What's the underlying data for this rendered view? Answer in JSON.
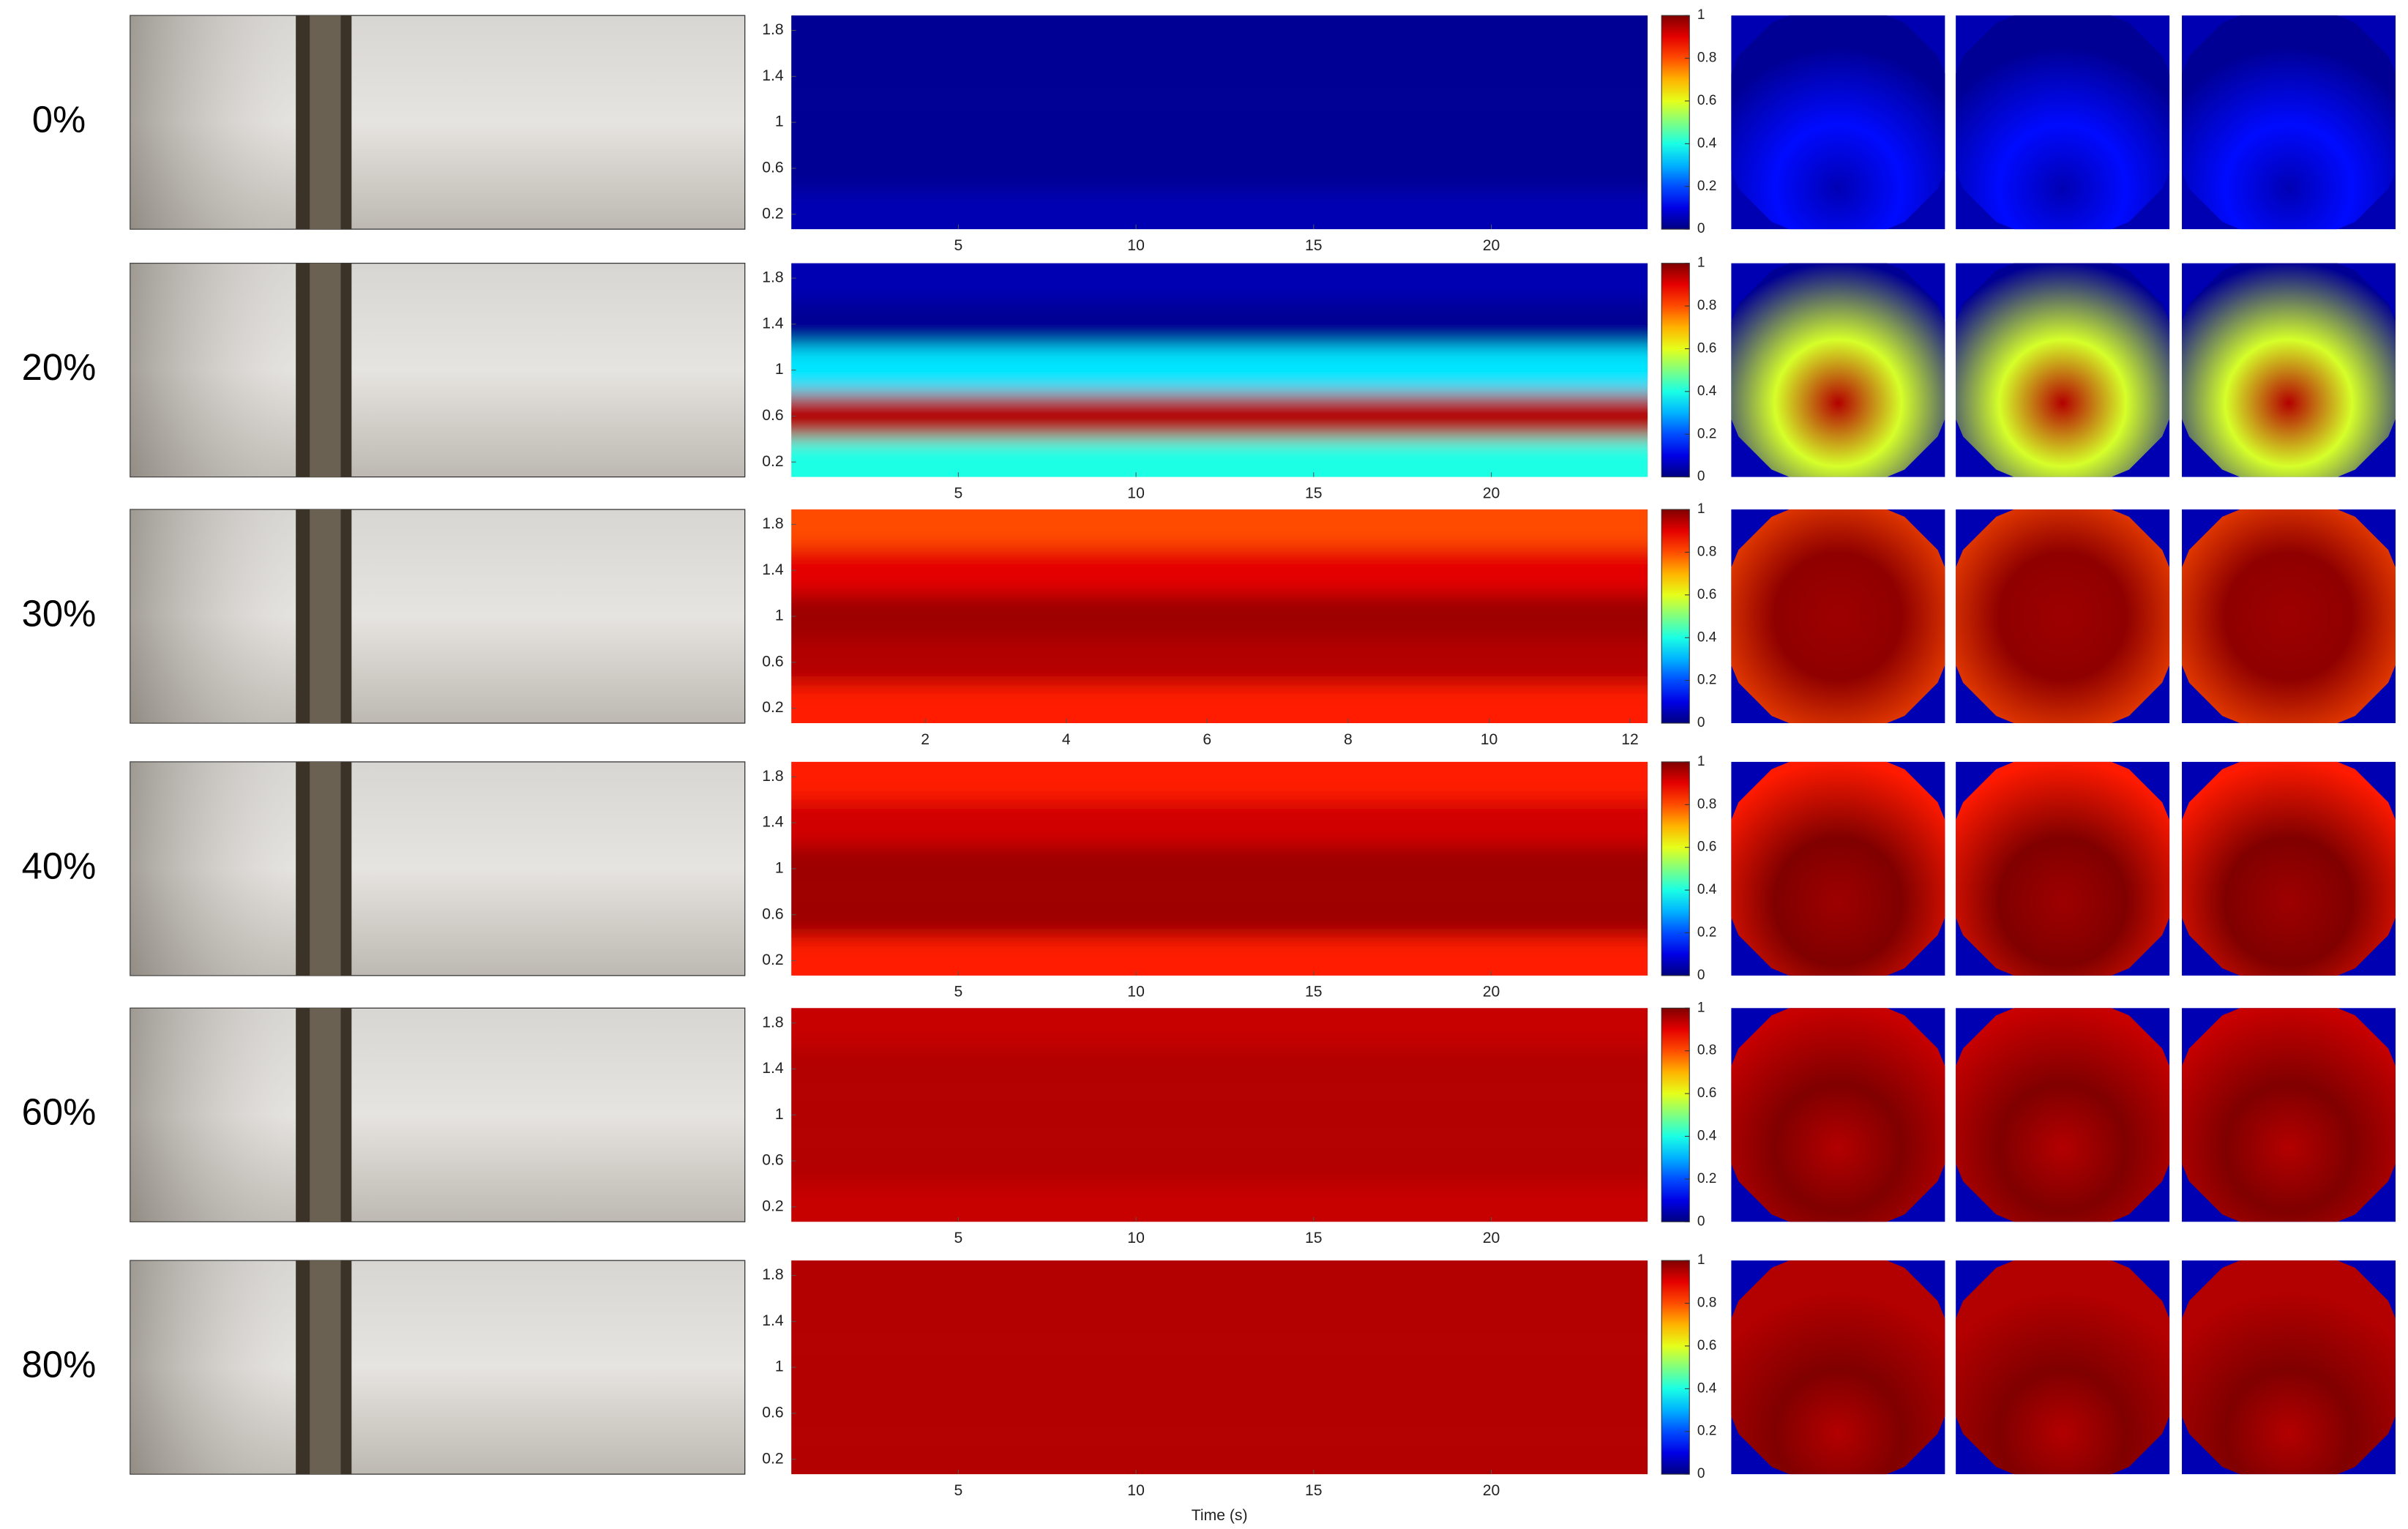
{
  "chart_data": [
    {
      "type": "heatmap",
      "label": "0%",
      "y": [
        0.2,
        0.6,
        1,
        1.4,
        1.8
      ],
      "values": [
        0.05,
        0.02,
        0.02,
        0.02,
        0.02
      ],
      "ylim": [
        0.07,
        1.93
      ],
      "yticks": [
        0.2,
        0.6,
        1,
        1.4,
        1.8
      ],
      "xlim": [
        0.3,
        24.4
      ],
      "xticks": [
        5,
        10,
        15,
        20
      ],
      "clim": [
        0,
        1
      ],
      "cticks": [
        0,
        0.2,
        0.4,
        0.6,
        0.8,
        1
      ]
    },
    {
      "type": "heatmap",
      "label": "20%",
      "y": [
        0.2,
        0.6,
        1,
        1.4,
        1.8
      ],
      "values": [
        0.4,
        0.95,
        0.35,
        0.02,
        0.05
      ],
      "ylim": [
        0.07,
        1.93
      ],
      "yticks": [
        0.2,
        0.6,
        1,
        1.4,
        1.8
      ],
      "xlim": [
        0.3,
        24.4
      ],
      "xticks": [
        5,
        10,
        15,
        20
      ],
      "clim": [
        0,
        1
      ],
      "cticks": [
        0,
        0.2,
        0.4,
        0.6,
        0.8,
        1
      ]
    },
    {
      "type": "heatmap",
      "label": "30%",
      "y": [
        0.2,
        0.6,
        1,
        1.4,
        1.8
      ],
      "values": [
        0.85,
        0.95,
        0.97,
        0.9,
        0.8
      ],
      "ylim": [
        0.07,
        1.93
      ],
      "yticks": [
        0.2,
        0.6,
        1,
        1.4,
        1.8
      ],
      "xlim": [
        0.1,
        12.25
      ],
      "xticks": [
        2,
        4,
        6,
        8,
        10,
        12
      ],
      "clim": [
        0,
        1
      ],
      "cticks": [
        0,
        0.2,
        0.4,
        0.6,
        0.8,
        1
      ]
    },
    {
      "type": "heatmap",
      "label": "40%",
      "y": [
        0.2,
        0.6,
        1,
        1.4,
        1.8
      ],
      "values": [
        0.85,
        0.97,
        0.97,
        0.92,
        0.85
      ],
      "ylim": [
        0.07,
        1.93
      ],
      "yticks": [
        0.2,
        0.6,
        1,
        1.4,
        1.8
      ],
      "xlim": [
        0.3,
        24.4
      ],
      "xticks": [
        5,
        10,
        15,
        20
      ],
      "clim": [
        0,
        1
      ],
      "cticks": [
        0,
        0.2,
        0.4,
        0.6,
        0.8,
        1
      ]
    },
    {
      "type": "heatmap",
      "label": "60%",
      "y": [
        0.2,
        0.6,
        1,
        1.4,
        1.8
      ],
      "values": [
        0.93,
        0.95,
        0.95,
        0.95,
        0.93
      ],
      "ylim": [
        0.07,
        1.93
      ],
      "yticks": [
        0.2,
        0.6,
        1,
        1.4,
        1.8
      ],
      "xlim": [
        0.3,
        24.4
      ],
      "xticks": [
        5,
        10,
        15,
        20
      ],
      "clim": [
        0,
        1
      ],
      "cticks": [
        0,
        0.2,
        0.4,
        0.6,
        0.8,
        1
      ]
    },
    {
      "type": "heatmap",
      "label": "80%",
      "y": [
        0.2,
        0.6,
        1,
        1.4,
        1.8
      ],
      "values": [
        0.95,
        0.95,
        0.95,
        0.95,
        0.95
      ],
      "ylim": [
        0.07,
        1.93
      ],
      "yticks": [
        0.2,
        0.6,
        1,
        1.4,
        1.8
      ],
      "xlim": [
        0.3,
        24.4
      ],
      "xticks": [
        5,
        10,
        15,
        20
      ],
      "clim": [
        0,
        1
      ],
      "cticks": [
        0,
        0.2,
        0.4,
        0.6,
        0.8,
        1
      ],
      "xlabel": "Time (s)"
    }
  ]
}
